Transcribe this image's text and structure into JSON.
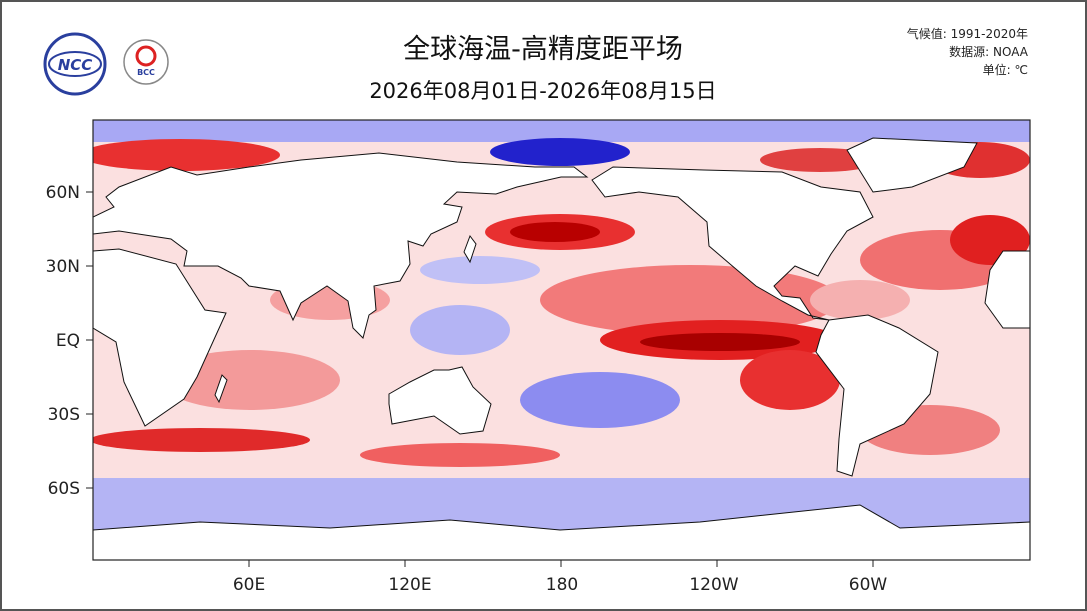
{
  "header": {
    "title": "全球海温-高精度距平场",
    "subtitle": "2026年08月01日-2026年08月15日",
    "meta": [
      "气候值: 1991-2020年",
      "数据源: NOAA",
      "单位: ℃"
    ],
    "logos": [
      "NCC",
      "BCC"
    ]
  },
  "map": {
    "lat_labels": [
      "60N",
      "30N",
      "EQ",
      "30S",
      "60S"
    ],
    "lon_labels": [
      "60E",
      "120E",
      "180",
      "120W",
      "60W"
    ]
  }
}
